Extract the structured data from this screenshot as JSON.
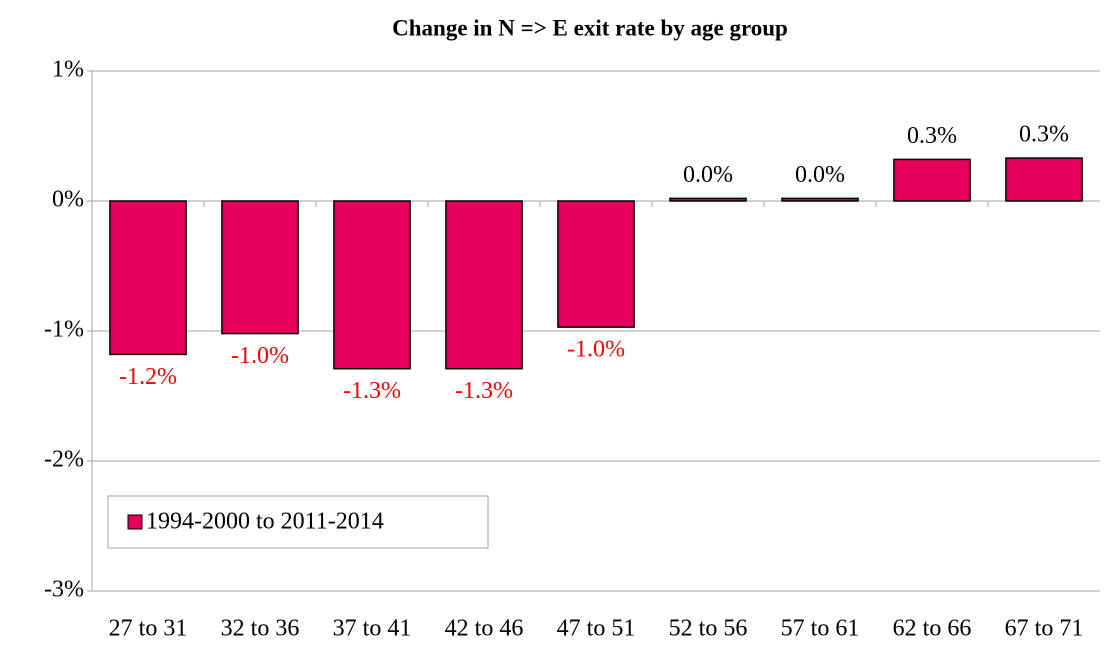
{
  "chart_data": {
    "type": "bar",
    "title": "Change in N => E exit rate by age group",
    "categories": [
      "27 to 31",
      "32 to 36",
      "37 to 41",
      "42 to 46",
      "47 to 51",
      "52 to 56",
      "57 to 61",
      "62 to 66",
      "67 to 71"
    ],
    "series": [
      {
        "name": "1994-2000 to 2011-2014",
        "color": "#e6005c",
        "values": [
          -1.18,
          -1.02,
          -1.29,
          -1.29,
          -0.97,
          0.02,
          0.02,
          0.32,
          0.33
        ],
        "value_labels": [
          "-1.2%",
          "-1.0%",
          "-1.3%",
          "-1.3%",
          "-1.0%",
          "0.0%",
          "0.0%",
          "0.3%",
          "0.3%"
        ]
      }
    ],
    "ylim": [
      -3,
      1
    ],
    "yticks": [
      {
        "value": -3,
        "label": "-3%"
      },
      {
        "value": -2,
        "label": "-2%"
      },
      {
        "value": -1,
        "label": "-1%"
      },
      {
        "value": 0,
        "label": "0%"
      },
      {
        "value": 1,
        "label": "1%"
      }
    ],
    "grid": true,
    "legend": "lower left",
    "negative_label_color": "#ff0000",
    "positive_label_color": "#000000"
  }
}
